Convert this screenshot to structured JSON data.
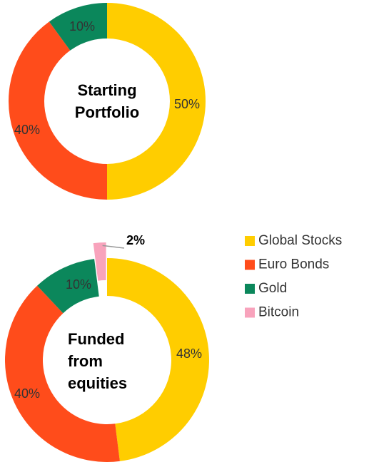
{
  "legend": {
    "names": [
      "Global Stocks",
      "Euro Bonds",
      "Gold",
      "Bitcoin"
    ],
    "colors": [
      "#ffcd00",
      "#ff4c1b",
      "#0b875b",
      "#f8a3bc"
    ]
  },
  "chart_data": [
    {
      "type": "pie",
      "center_label": [
        "Starting",
        "Portfolio"
      ],
      "values": [
        50,
        40,
        10
      ],
      "value_labels": [
        "50%",
        "40%",
        "10%"
      ]
    },
    {
      "type": "pie",
      "center_label": [
        "Funded",
        "from",
        "equities"
      ],
      "values": [
        48,
        40,
        10,
        2
      ],
      "value_labels": [
        "48%",
        "40%",
        "10%",
        "2%"
      ]
    }
  ]
}
